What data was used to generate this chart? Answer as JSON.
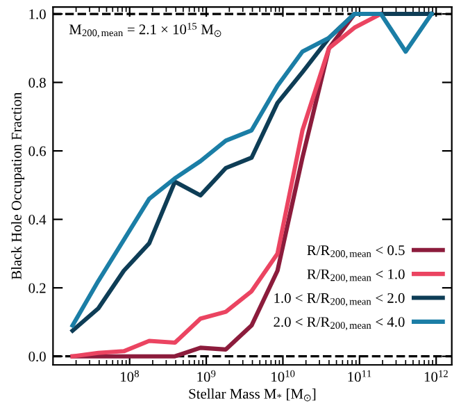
{
  "chart_data": {
    "type": "line",
    "xlabel": "Stellar Mass M$_{*}$ [M$_{⊙}$]",
    "ylabel": "Black Hole Occupation Fraction",
    "x": [
      18000000.0,
      39000000.0,
      84000000.0,
      180000000.0,
      390000000.0,
      840000000.0,
      1800000000.0,
      3900000000.0,
      8500000000.0,
      18000000000.0,
      40000000000.0,
      86000000000.0,
      190000000000.0,
      400000000000.0,
      870000000000.0
    ],
    "series": [
      {
        "name": "R/R$_{200,mean}$ < 0.5",
        "color": "#8c1c3c",
        "values": [
          0,
          0,
          0,
          0,
          0,
          0.025,
          0.02,
          0.09,
          0.25,
          0.58,
          0.9,
          1.0,
          1.0,
          null,
          null
        ]
      },
      {
        "name": "R/R$_{200,mean}$ < 1.0",
        "color": "#eb4461",
        "values": [
          0,
          0.01,
          0.015,
          0.045,
          0.04,
          0.11,
          0.13,
          0.19,
          0.3,
          0.66,
          0.9,
          0.96,
          1.0,
          null,
          null
        ]
      },
      {
        "name": "1.0 < R/R$_{200,mean}$ < 2.0",
        "color": "#0e3d56",
        "values": [
          0.075,
          0.14,
          0.25,
          0.33,
          0.51,
          0.47,
          0.55,
          0.58,
          0.74,
          0.83,
          0.93,
          1.0,
          1.0,
          1.0,
          1.0
        ]
      },
      {
        "name": "2.0 < R/R$_{200,mean}$ < 4.0",
        "color": "#1b7ea6",
        "values": [
          0.09,
          0.22,
          0.34,
          0.46,
          0.52,
          0.57,
          0.63,
          0.66,
          0.79,
          0.89,
          0.93,
          1.0,
          1.0,
          0.89,
          1.0
        ]
      }
    ],
    "annotations": [
      "M$_{200,mean}$ = 2.1 × 10$^{15}$ M$_{⊙}$"
    ],
    "ref_lines": [
      {
        "axis": "y",
        "value": 0,
        "color": "#000000",
        "line_style": "dashed"
      },
      {
        "axis": "y",
        "value": 1,
        "color": "#000000",
        "line_style": "dashed"
      }
    ],
    "log": "x",
    "xlim": [
      10000000.0,
      1600000000000.0
    ],
    "ylim": [
      -0.025,
      1.02
    ],
    "xticks": [
      {
        "value": 100000000.0,
        "label": "10$^{8}$"
      },
      {
        "value": 1000000000.0,
        "label": "10$^{9}$"
      },
      {
        "value": 10000000000.0,
        "label": "10$^{10}$"
      },
      {
        "value": 100000000000.0,
        "label": "10$^{11}$"
      },
      {
        "value": 1000000000000.0,
        "label": "10$^{12}$"
      }
    ],
    "yticks": [
      {
        "value": 0,
        "label": "0.0"
      },
      {
        "value": 0.2,
        "label": "0.2"
      },
      {
        "value": 0.4,
        "label": "0.4"
      },
      {
        "value": 0.6,
        "label": "0.6"
      },
      {
        "value": 0.8,
        "label": "0.8"
      },
      {
        "value": 1.0,
        "label": "1.0"
      }
    ],
    "legend": "bottom right",
    "grid": false,
    "marker": "none",
    "line_style": "solid"
  }
}
